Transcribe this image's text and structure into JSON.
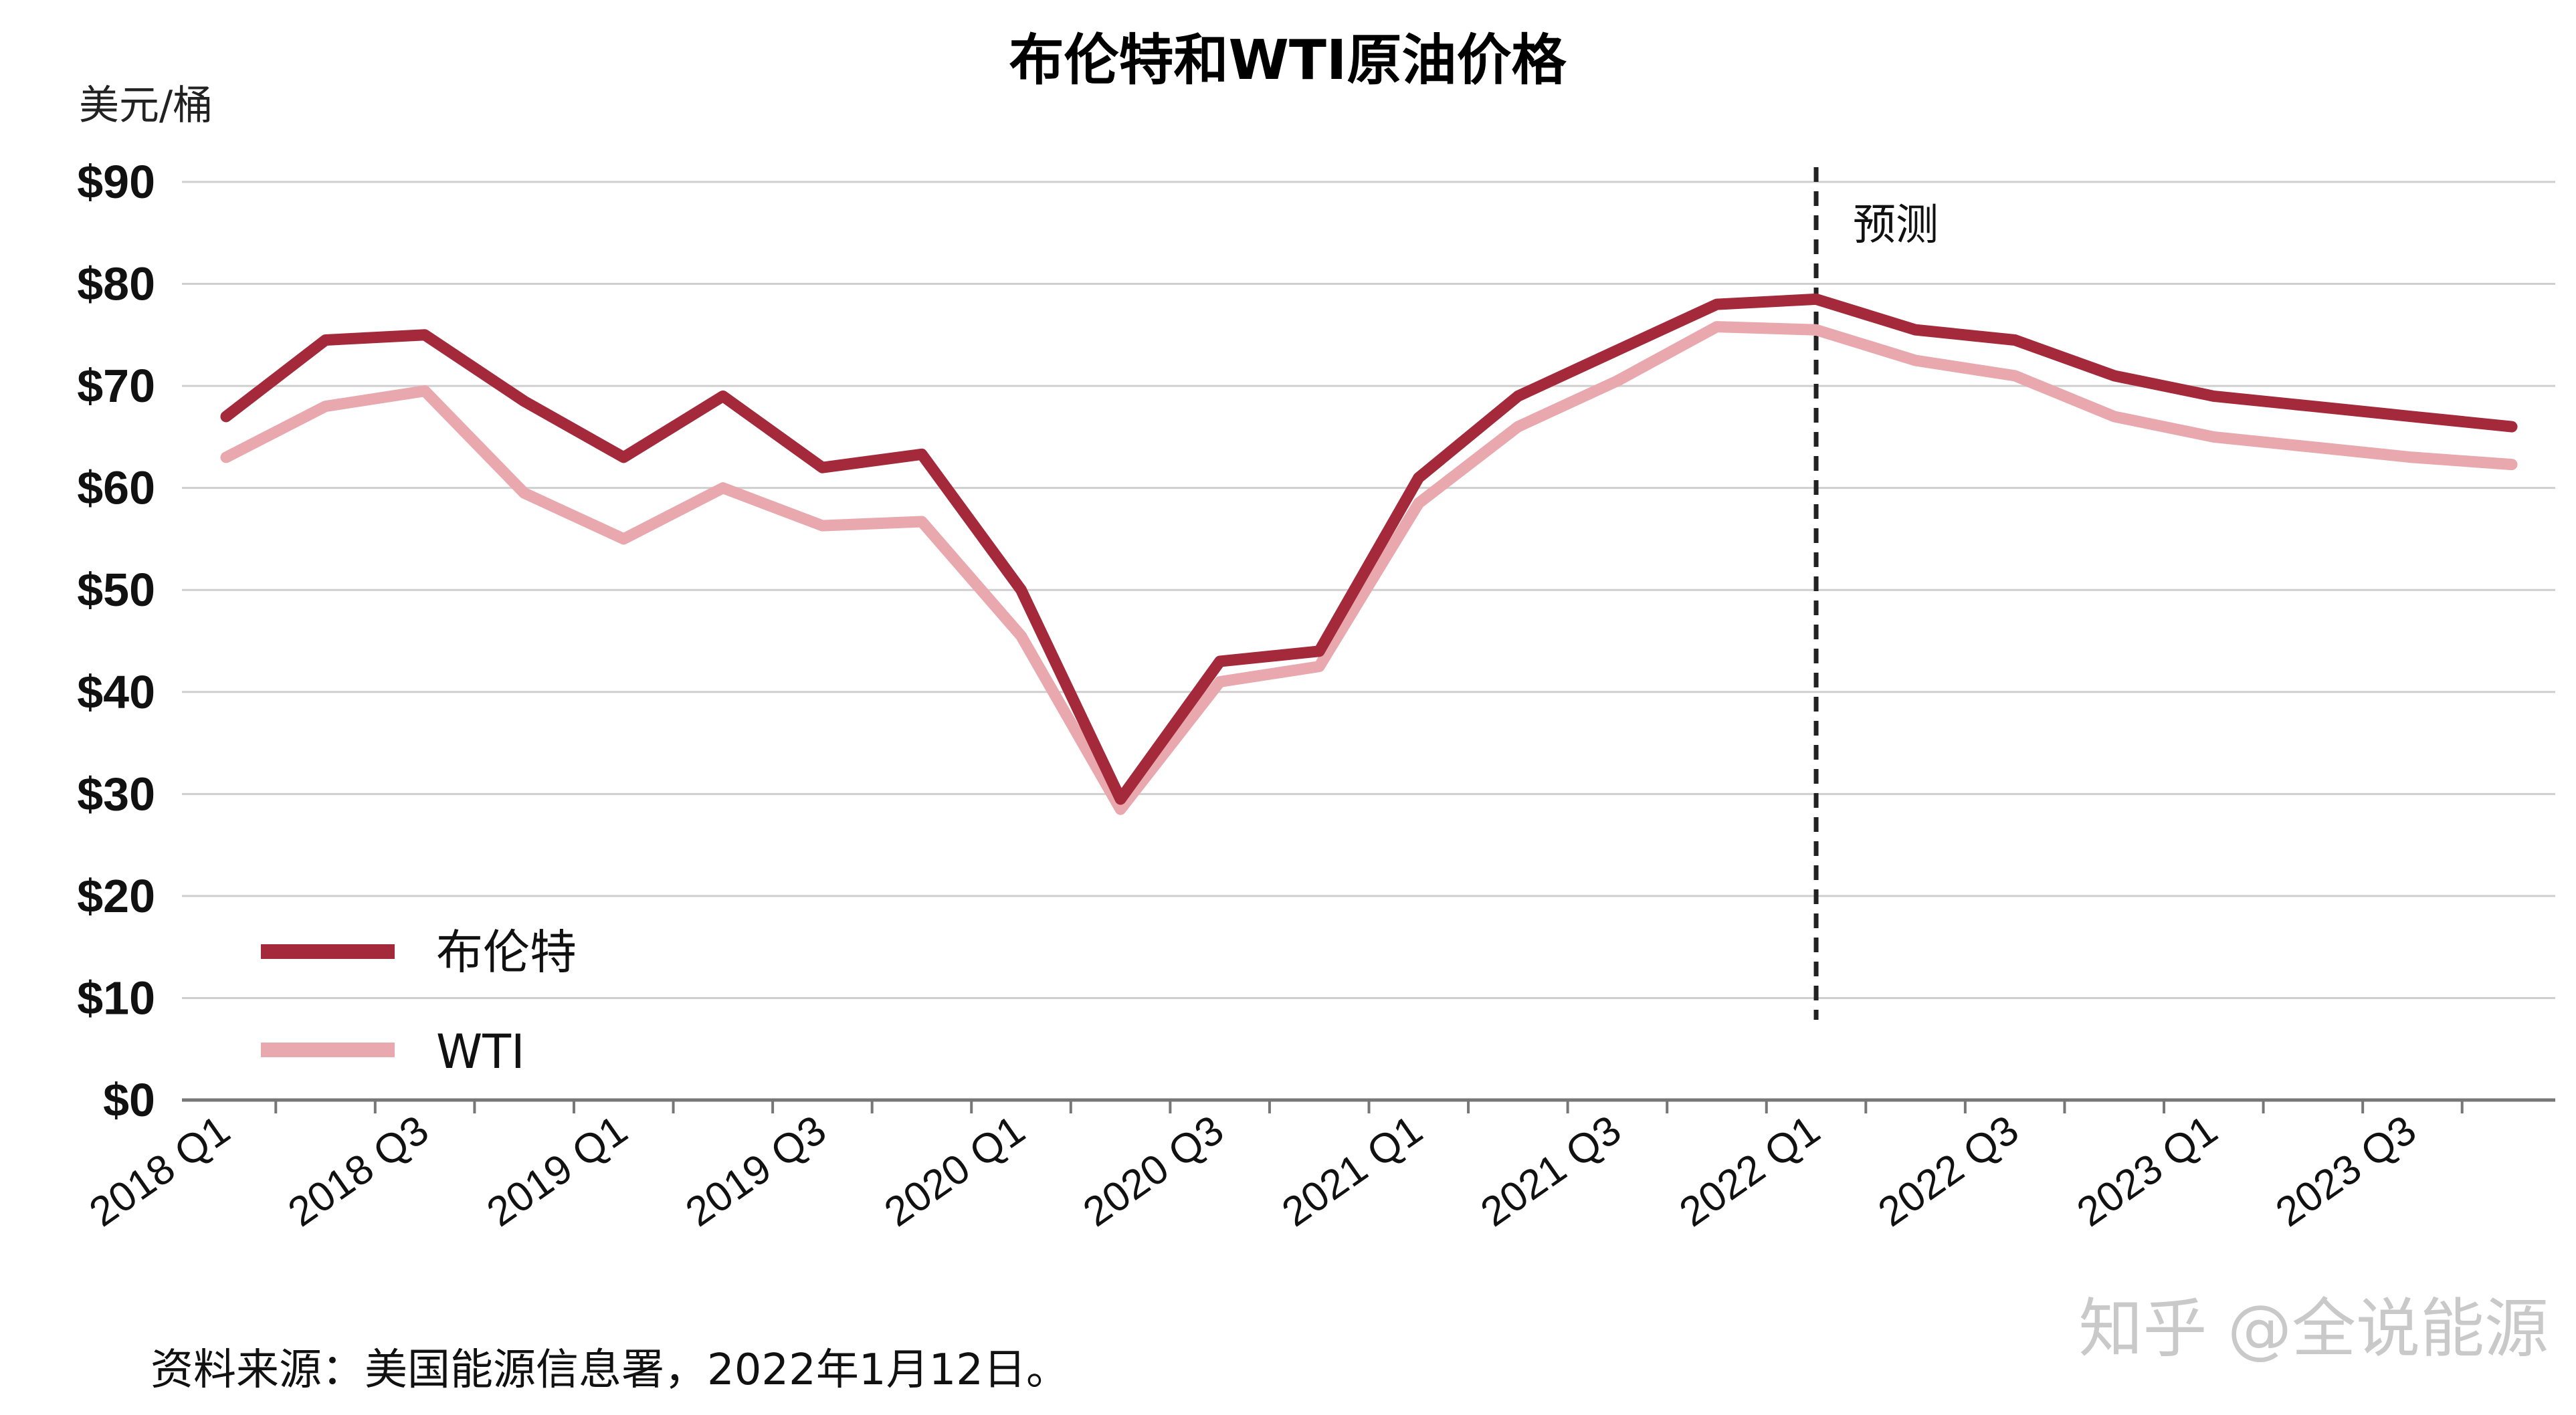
{
  "chart_data": {
    "type": "line",
    "title": "布伦特和WTI原油价格",
    "ylabel": "美元/桶",
    "ylim": [
      0,
      90
    ],
    "yticks": [
      "$0",
      "$10",
      "$20",
      "$30",
      "$40",
      "$50",
      "$60",
      "$70",
      "$80",
      "$90"
    ],
    "grid": true,
    "legend_position": "bottom-left",
    "categories": [
      "2018 Q1",
      "2018 Q2",
      "2018 Q3",
      "2018 Q4",
      "2019 Q1",
      "2019 Q2",
      "2019 Q3",
      "2019 Q4",
      "2020 Q1",
      "2020 Q2",
      "2020 Q3",
      "2020 Q4",
      "2021 Q1",
      "2021 Q2",
      "2021 Q3",
      "2021 Q4",
      "2022 Q1",
      "2022 Q2",
      "2022 Q3",
      "2022 Q4",
      "2023 Q1",
      "2023 Q2",
      "2023 Q3",
      "2023 Q4"
    ],
    "xtick_labels": [
      "2018 Q1",
      "2018 Q3",
      "2019 Q1",
      "2019 Q3",
      "2020 Q1",
      "2020 Q3",
      "2021 Q1",
      "2021 Q3",
      "2022 Q1",
      "2022 Q3",
      "2023 Q1",
      "2023 Q3"
    ],
    "series": [
      {
        "name": "布伦特",
        "color": "#a42a3b",
        "values": [
          67,
          74.5,
          75,
          68.5,
          63,
          69,
          62,
          63.3,
          50,
          29.5,
          43,
          44,
          61,
          69,
          73.5,
          78,
          78.5,
          75.5,
          74.5,
          71,
          69,
          68,
          67,
          66
        ]
      },
      {
        "name": "WTI",
        "color": "#e8a8ad",
        "values": [
          63,
          68,
          69.5,
          59.5,
          55,
          60,
          56.3,
          56.7,
          45.5,
          28.5,
          41,
          42.5,
          58.5,
          66,
          70.5,
          75.8,
          75.5,
          72.5,
          71,
          67,
          65,
          64,
          63,
          62.3
        ]
      }
    ],
    "forecast_label": "预测",
    "forecast_start": "2022 Q1"
  },
  "source_note": "资料来源：美国能源信息署，2022年1月12日。",
  "watermark": "知乎 @全说能源"
}
